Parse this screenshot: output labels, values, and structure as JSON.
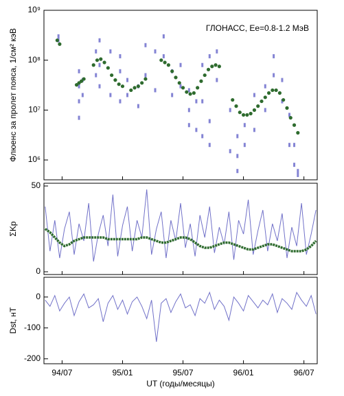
{
  "chart_data": [
    {
      "type": "scatter",
      "ylabel": "Флюенс за пролет пояса, 1/см² кэВ",
      "annotation": "ГЛОНАСС, Ee=0.8-1.2 МэВ",
      "yscale": "log",
      "ylim": [
        400000,
        1000000000
      ],
      "yticks": [
        {
          "value": 1000000000,
          "label": "10⁹"
        },
        {
          "value": 100000000,
          "label": "10⁸"
        },
        {
          "value": 10000000,
          "label": "10⁷"
        },
        {
          "value": 1000000,
          "label": "10⁶"
        }
      ],
      "xlim": [
        1994.35,
        1996.61
      ],
      "series": [
        {
          "color": "#8484d4",
          "x": [
            1994.47,
            1994.47,
            1994.64,
            1994.64,
            1994.64,
            1994.64,
            1994.67,
            1994.67,
            1994.78,
            1994.78,
            1994.81,
            1994.81,
            1994.81,
            1994.9,
            1994.9,
            1994.98,
            1994.98,
            1994.98,
            1995.04,
            1995.04,
            1995.13,
            1995.13,
            1995.19,
            1995.19,
            1995.27,
            1995.27,
            1995.34,
            1995.34,
            1995.41,
            1995.41,
            1995.48,
            1995.48,
            1995.55,
            1995.55,
            1995.55,
            1995.61,
            1995.61,
            1995.66,
            1995.66,
            1995.66,
            1995.72,
            1995.72,
            1995.72,
            1995.78,
            1995.78,
            1995.89,
            1995.89,
            1995.95,
            1995.95,
            1995.95,
            1996.01,
            1996.01,
            1996.09,
            1996.09,
            1996.18,
            1996.18,
            1996.25,
            1996.25,
            1996.32,
            1996.32,
            1996.38,
            1996.38,
            1996.42,
            1996.42,
            1996.45,
            1996.45
          ],
          "values": [
            300000000,
            250000000,
            30000000,
            15000000,
            7000000,
            60000000,
            40000000,
            20000000,
            150000000,
            50000000,
            250000000,
            80000000,
            30000000,
            150000000,
            20000000,
            120000000,
            15000000,
            60000000,
            20000000,
            40000000,
            30000000,
            12000000,
            200000000,
            50000000,
            150000000,
            25000000,
            300000000,
            120000000,
            60000000,
            20000000,
            80000000,
            30000000,
            25000000,
            10000000,
            5000000,
            15000000,
            4000000,
            80000000,
            3000000,
            15000000,
            120000000,
            2000000,
            6000000,
            150000000,
            40000000,
            10000000,
            1500000,
            3000000,
            600000,
            1200000,
            5000000,
            2000000,
            20000000,
            4000000,
            30000000,
            10000000,
            120000000,
            50000000,
            40000000,
            15000000,
            8000000,
            2000000,
            2000000,
            800000,
            600000,
            500000
          ]
        },
        {
          "color": "#2e6b2e",
          "x": [
            1994.46,
            1994.48,
            1994.62,
            1994.64,
            1994.66,
            1994.68,
            1994.76,
            1994.79,
            1994.82,
            1994.85,
            1994.88,
            1994.91,
            1994.94,
            1994.97,
            1995.0,
            1995.07,
            1995.1,
            1995.13,
            1995.16,
            1995.19,
            1995.32,
            1995.35,
            1995.38,
            1995.41,
            1995.44,
            1995.47,
            1995.5,
            1995.53,
            1995.56,
            1995.59,
            1995.62,
            1995.65,
            1995.68,
            1995.71,
            1995.74,
            1995.77,
            1995.8,
            1995.91,
            1995.94,
            1995.97,
            1996.0,
            1996.03,
            1996.06,
            1996.09,
            1996.12,
            1996.15,
            1996.18,
            1996.21,
            1996.24,
            1996.27,
            1996.3,
            1996.33,
            1996.36,
            1996.39,
            1996.42,
            1996.45
          ],
          "values": [
            250000000,
            210000000,
            32000000,
            35000000,
            38000000,
            42000000,
            80000000,
            100000000,
            105000000,
            90000000,
            70000000,
            50000000,
            40000000,
            33000000,
            30000000,
            25000000,
            28000000,
            30000000,
            35000000,
            42000000,
            100000000,
            90000000,
            80000000,
            60000000,
            45000000,
            35000000,
            28000000,
            23000000,
            21000000,
            22000000,
            28000000,
            38000000,
            50000000,
            65000000,
            75000000,
            80000000,
            75000000,
            16000000,
            12000000,
            9000000,
            8000000,
            8000000,
            8500000,
            10000000,
            12000000,
            15000000,
            18000000,
            22000000,
            25000000,
            25000000,
            22000000,
            16000000,
            11000000,
            7000000,
            5000000,
            3500000
          ]
        }
      ]
    },
    {
      "type": "line",
      "ylabel": "ΣKp",
      "ylim": [
        -1.6,
        51.6
      ],
      "yticks": [
        0,
        50
      ],
      "xlim": [
        1994.35,
        1996.61
      ],
      "x": [
        1994.36,
        1994.4,
        1994.44,
        1994.48,
        1994.52,
        1994.56,
        1994.6,
        1994.64,
        1994.68,
        1994.72,
        1994.76,
        1994.8,
        1994.84,
        1994.88,
        1994.92,
        1994.96,
        1995.0,
        1995.04,
        1995.08,
        1995.12,
        1995.16,
        1995.2,
        1995.24,
        1995.28,
        1995.32,
        1995.36,
        1995.4,
        1995.44,
        1995.48,
        1995.52,
        1995.56,
        1995.6,
        1995.64,
        1995.68,
        1995.72,
        1995.76,
        1995.8,
        1995.84,
        1995.88,
        1995.92,
        1995.96,
        1996.0,
        1996.04,
        1996.08,
        1996.12,
        1996.16,
        1996.2,
        1996.24,
        1996.28,
        1996.32,
        1996.36,
        1996.4,
        1996.44,
        1996.48,
        1996.52,
        1996.56,
        1996.6
      ],
      "series": [
        {
          "color": "#7070c8",
          "width": 1,
          "values": [
            38,
            12,
            30,
            8,
            25,
            35,
            10,
            28,
            18,
            40,
            6,
            22,
            33,
            15,
            45,
            9,
            27,
            38,
            12,
            30,
            20,
            48,
            10,
            25,
            35,
            8,
            30,
            18,
            40,
            14,
            28,
            9,
            33,
            20,
            38,
            11,
            26,
            16,
            35,
            7,
            30,
            22,
            42,
            10,
            24,
            36,
            12,
            28,
            18,
            34,
            8,
            26,
            15,
            40,
            10,
            22,
            36
          ]
        },
        {
          "color": "#2e6b2e",
          "width": 3.5,
          "values": [
            25,
            23,
            20,
            17,
            15,
            16,
            18,
            19,
            20,
            20,
            20,
            20,
            20,
            19,
            19,
            19,
            19,
            19,
            19,
            19,
            20,
            20,
            19,
            18,
            17,
            17,
            18,
            19,
            20,
            20,
            19,
            17,
            15,
            14,
            14,
            15,
            16,
            17,
            17,
            16,
            15,
            14,
            13,
            13,
            14,
            15,
            16,
            16,
            15,
            14,
            13,
            12,
            12,
            12,
            13,
            15,
            18
          ]
        }
      ]
    },
    {
      "type": "line",
      "ylabel": "Dst, нТ",
      "xlabel": "UT (годы/месяцы)",
      "ylim": [
        -216,
        64
      ],
      "yticks": [
        0,
        -100,
        -200
      ],
      "xlim": [
        1994.35,
        1996.61
      ],
      "xticks": [
        {
          "value": 1994.5,
          "label": "94/07"
        },
        {
          "value": 1995.0,
          "label": "95/01"
        },
        {
          "value": 1995.5,
          "label": "95/07"
        },
        {
          "value": 1996.0,
          "label": "96/01"
        },
        {
          "value": 1996.5,
          "label": "96/07"
        }
      ],
      "x": [
        1994.36,
        1994.4,
        1994.44,
        1994.48,
        1994.52,
        1994.56,
        1994.6,
        1994.64,
        1994.68,
        1994.72,
        1994.76,
        1994.8,
        1994.84,
        1994.88,
        1994.92,
        1994.96,
        1995.0,
        1995.04,
        1995.08,
        1995.12,
        1995.16,
        1995.2,
        1995.24,
        1995.28,
        1995.32,
        1995.36,
        1995.4,
        1995.44,
        1995.48,
        1995.52,
        1995.56,
        1995.6,
        1995.64,
        1995.68,
        1995.72,
        1995.76,
        1995.8,
        1995.84,
        1995.88,
        1995.92,
        1995.96,
        1996.0,
        1996.04,
        1996.08,
        1996.12,
        1996.16,
        1996.2,
        1996.24,
        1996.28,
        1996.32,
        1996.36,
        1996.4,
        1996.44,
        1996.48,
        1996.52,
        1996.56,
        1996.6
      ],
      "series": [
        {
          "color": "#7070c8",
          "width": 1,
          "values": [
            -10,
            -30,
            5,
            -45,
            -20,
            0,
            -60,
            -15,
            10,
            -35,
            -25,
            -5,
            -80,
            -20,
            5,
            -40,
            -10,
            -55,
            -15,
            0,
            -30,
            -70,
            -10,
            -145,
            -20,
            -5,
            -50,
            -15,
            10,
            -35,
            -25,
            -60,
            -5,
            -20,
            15,
            -40,
            -10,
            -30,
            -75,
            0,
            -20,
            -45,
            5,
            -15,
            -35,
            -10,
            -25,
            10,
            -50,
            -5,
            -20,
            -40,
            15,
            -10,
            -30,
            5,
            -55
          ]
        }
      ]
    }
  ]
}
